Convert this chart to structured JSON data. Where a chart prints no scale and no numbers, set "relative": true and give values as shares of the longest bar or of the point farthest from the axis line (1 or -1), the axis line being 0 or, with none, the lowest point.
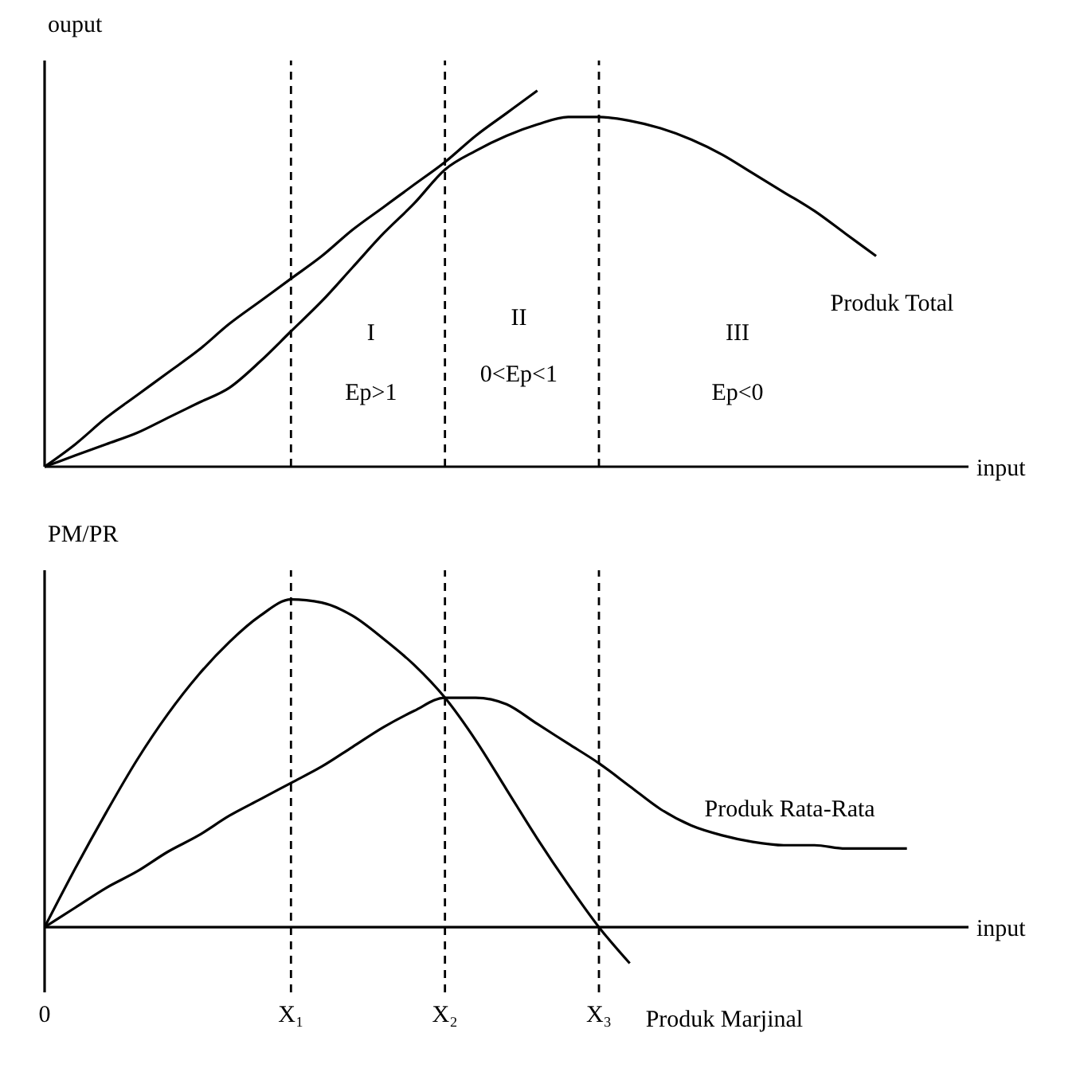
{
  "chart_data": [
    {
      "type": "line",
      "relative": true,
      "ylabel": "ouput",
      "xlabel": "input",
      "tick_labels": false,
      "marker": "none",
      "line_style": "solid",
      "categories": [
        "0",
        null,
        null,
        null,
        null,
        null,
        null,
        null,
        "X₁",
        null,
        null,
        null,
        null,
        "X₂",
        null,
        null,
        null,
        null,
        "X₃",
        null,
        null,
        null,
        null,
        null,
        null,
        null,
        null,
        null,
        null,
        null,
        null
      ],
      "series": [
        {
          "name": "Produk Total",
          "color": "#000000",
          "values": [
            0,
            0.03,
            0.06,
            0.09,
            0.13,
            0.17,
            0.21,
            0.28,
            0.36,
            0.44,
            0.53,
            0.62,
            0.7,
            0.79,
            0.84,
            0.88,
            0.91,
            0.93,
            0.93,
            0.92,
            0.9,
            0.87,
            0.83,
            0.78,
            0.73,
            0.68,
            0.62,
            0.56,
            null,
            null,
            null
          ]
        },
        {
          "color": "#000000",
          "values": [
            0,
            0.06,
            0.13,
            0.19,
            0.25,
            0.31,
            0.38,
            0.44,
            0.5,
            0.56,
            0.63,
            0.69,
            0.75,
            0.81,
            0.88,
            0.94,
            1,
            null,
            null,
            null,
            null,
            null,
            null,
            null,
            null,
            null,
            null,
            null,
            null,
            null,
            null
          ]
        }
      ],
      "ref_lines": [
        {
          "axis": "x",
          "value": "X₁",
          "color": "#000000",
          "line_style": "dashed"
        },
        {
          "axis": "x",
          "value": "X₂",
          "color": "#000000",
          "line_style": "dashed"
        },
        {
          "axis": "x",
          "value": "X₃",
          "color": "#000000",
          "line_style": "dashed"
        }
      ],
      "annotations": [
        "I",
        "Ep>1",
        "II",
        "0<Ep<1",
        "III",
        "Ep<0"
      ]
    },
    {
      "type": "line",
      "relative": true,
      "ylabel": "PM/PR",
      "xlabel": "input",
      "tick_labels": "x",
      "marker": "none",
      "line_style": "solid",
      "categories": [
        "0",
        null,
        null,
        null,
        null,
        null,
        null,
        null,
        "X₁",
        null,
        null,
        null,
        null,
        "X₂",
        null,
        null,
        null,
        null,
        "X₃",
        null,
        null,
        null,
        null,
        null,
        null,
        null,
        null,
        null,
        null,
        null,
        null
      ],
      "series": [
        {
          "name": "Produk Marjinal",
          "color": "#000000",
          "values": [
            0,
            0.18,
            0.35,
            0.51,
            0.65,
            0.77,
            0.87,
            0.95,
            1,
            0.99,
            0.95,
            0.88,
            0.8,
            0.7,
            0.57,
            0.42,
            0.27,
            0.13,
            0,
            -0.11,
            null,
            null,
            null,
            null,
            null,
            null,
            null,
            null,
            null,
            null,
            null
          ]
        },
        {
          "name": "Produk Rata-Rata",
          "color": "#000000",
          "values": [
            0,
            0.06,
            0.12,
            0.17,
            0.23,
            0.28,
            0.34,
            0.39,
            0.44,
            0.49,
            0.55,
            0.61,
            0.66,
            0.7,
            0.7,
            0.68,
            0.62,
            0.56,
            0.5,
            0.43,
            0.36,
            0.31,
            0.28,
            0.26,
            0.25,
            0.25,
            0.24,
            0.24,
            0.24,
            null,
            null
          ]
        }
      ],
      "ref_lines": [
        {
          "axis": "x",
          "value": "X₁",
          "color": "#000000",
          "line_style": "dashed"
        },
        {
          "axis": "x",
          "value": "X₂",
          "color": "#000000",
          "line_style": "dashed"
        },
        {
          "axis": "x",
          "value": "X₃",
          "color": "#000000",
          "line_style": "dashed"
        }
      ]
    }
  ]
}
